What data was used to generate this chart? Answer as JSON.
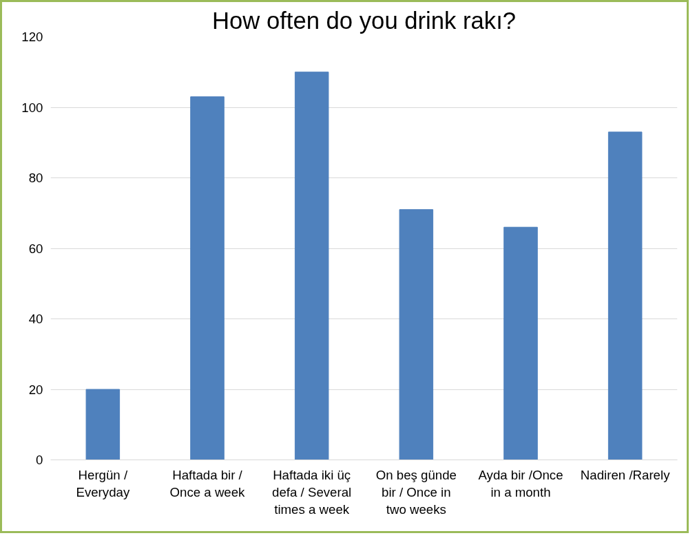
{
  "chart_data": {
    "type": "bar",
    "title": "How often do you drink rakı?",
    "categories": [
      "Hergün / Everyday",
      "Haftada bir / Once a week",
      "Haftada iki üç defa / Several times a week",
      "On beş günde bir / Once in two weeks",
      "Ayda bir /Once in a month",
      "Nadiren /Rarely"
    ],
    "values": [
      20,
      103,
      110,
      71,
      66,
      93
    ],
    "color": "#4f81bd",
    "ylim": [
      0,
      120
    ],
    "yticks": [
      0,
      20,
      40,
      60,
      80,
      100,
      120
    ],
    "grid": "y"
  }
}
